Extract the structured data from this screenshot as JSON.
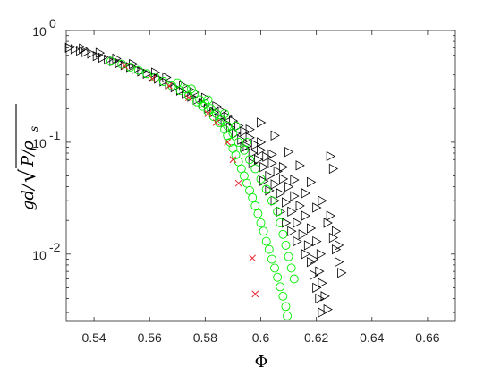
{
  "chart_data": {
    "type": "scatter",
    "title": "",
    "xlabel": "Φ",
    "ylabel": "gd/√(P/ρ_s)",
    "xscale": "linear",
    "yscale": "log",
    "xlim": [
      0.53,
      0.67
    ],
    "ylim": [
      0.0025,
      1.0
    ],
    "xticks": [
      0.54,
      0.56,
      0.58,
      0.6,
      0.62,
      0.64,
      0.66
    ],
    "xtick_labels": [
      "0.54",
      "0.56",
      "0.58",
      "0.6",
      "0.62",
      "0.64",
      "0.66"
    ],
    "yticks": [
      0.01,
      0.1,
      1.0
    ],
    "grid": false,
    "legend": "none",
    "series": [
      {
        "marker": "triangle-right",
        "color": "#000000",
        "points": [
          [
            0.531,
            0.7
          ],
          [
            0.533,
            0.68
          ],
          [
            0.535,
            0.66
          ],
          [
            0.537,
            0.64
          ],
          [
            0.539,
            0.62
          ],
          [
            0.541,
            0.59
          ],
          [
            0.543,
            0.57
          ],
          [
            0.545,
            0.55
          ],
          [
            0.547,
            0.53
          ],
          [
            0.549,
            0.51
          ],
          [
            0.551,
            0.49
          ],
          [
            0.553,
            0.47
          ],
          [
            0.555,
            0.45
          ],
          [
            0.557,
            0.43
          ],
          [
            0.559,
            0.41
          ],
          [
            0.561,
            0.39
          ],
          [
            0.563,
            0.37
          ],
          [
            0.565,
            0.35
          ],
          [
            0.567,
            0.33
          ],
          [
            0.569,
            0.31
          ],
          [
            0.571,
            0.29
          ],
          [
            0.573,
            0.27
          ],
          [
            0.575,
            0.255
          ],
          [
            0.577,
            0.24
          ],
          [
            0.579,
            0.22
          ],
          [
            0.581,
            0.2
          ],
          [
            0.583,
            0.185
          ],
          [
            0.585,
            0.165
          ],
          [
            0.587,
            0.15
          ],
          [
            0.589,
            0.135
          ],
          [
            0.591,
            0.12
          ],
          [
            0.593,
            0.105
          ],
          [
            0.595,
            0.092
          ],
          [
            0.597,
            0.08
          ],
          [
            0.599,
            0.07
          ],
          [
            0.601,
            0.06
          ],
          [
            0.603,
            0.05
          ],
          [
            0.605,
            0.042
          ],
          [
            0.607,
            0.035
          ],
          [
            0.609,
            0.029
          ],
          [
            0.611,
            0.024
          ],
          [
            0.613,
            0.019
          ],
          [
            0.615,
            0.015
          ],
          [
            0.617,
            0.012
          ],
          [
            0.619,
            0.009
          ],
          [
            0.621,
            0.007
          ],
          [
            0.622,
            0.0055
          ],
          [
            0.623,
            0.0042
          ],
          [
            0.624,
            0.0032
          ],
          [
            0.536,
            0.69
          ],
          [
            0.542,
            0.63
          ],
          [
            0.548,
            0.56
          ],
          [
            0.554,
            0.5
          ],
          [
            0.562,
            0.42
          ],
          [
            0.566,
            0.38
          ],
          [
            0.572,
            0.32
          ],
          [
            0.576,
            0.28
          ],
          [
            0.58,
            0.25
          ],
          [
            0.584,
            0.21
          ],
          [
            0.586,
            0.19
          ],
          [
            0.588,
            0.17
          ],
          [
            0.59,
            0.155
          ],
          [
            0.592,
            0.14
          ],
          [
            0.594,
            0.125
          ],
          [
            0.596,
            0.11
          ],
          [
            0.598,
            0.095
          ],
          [
            0.6,
            0.085
          ],
          [
            0.602,
            0.074
          ],
          [
            0.604,
            0.065
          ],
          [
            0.606,
            0.055
          ],
          [
            0.608,
            0.047
          ],
          [
            0.61,
            0.04
          ],
          [
            0.612,
            0.033
          ],
          [
            0.614,
            0.027
          ],
          [
            0.616,
            0.022
          ],
          [
            0.618,
            0.017
          ],
          [
            0.62,
            0.013
          ],
          [
            0.6215,
            0.01
          ],
          [
            0.594,
            0.09
          ],
          [
            0.597,
            0.065
          ],
          [
            0.601,
            0.045
          ],
          [
            0.603,
            0.037
          ],
          [
            0.605,
            0.03
          ],
          [
            0.607,
            0.024
          ],
          [
            0.609,
            0.019
          ],
          [
            0.611,
            0.016
          ],
          [
            0.613,
            0.013
          ],
          [
            0.616,
            0.01
          ],
          [
            0.618,
            0.0085
          ],
          [
            0.619,
            0.0065
          ],
          [
            0.62,
            0.005
          ],
          [
            0.621,
            0.004
          ],
          [
            0.622,
            0.003
          ],
          [
            0.596,
            0.13
          ],
          [
            0.6,
            0.1
          ],
          [
            0.604,
            0.078
          ],
          [
            0.608,
            0.06
          ],
          [
            0.612,
            0.046
          ],
          [
            0.616,
            0.035
          ],
          [
            0.62,
            0.026
          ],
          [
            0.624,
            0.019
          ],
          [
            0.626,
            0.014
          ],
          [
            0.627,
            0.011
          ],
          [
            0.628,
            0.0085
          ],
          [
            0.629,
            0.0068
          ],
          [
            0.625,
            0.075
          ],
          [
            0.626,
            0.058
          ],
          [
            0.6,
            0.15
          ],
          [
            0.605,
            0.115
          ],
          [
            0.61,
            0.082
          ],
          [
            0.614,
            0.062
          ],
          [
            0.618,
            0.044
          ],
          [
            0.622,
            0.03
          ],
          [
            0.625,
            0.022
          ],
          [
            0.627,
            0.016
          ],
          [
            0.628,
            0.012
          ]
        ]
      },
      {
        "marker": "circle",
        "color": "#00ee00",
        "points": [
          [
            0.546,
            0.53
          ],
          [
            0.55,
            0.5
          ],
          [
            0.553,
            0.47
          ],
          [
            0.556,
            0.44
          ],
          [
            0.559,
            0.41
          ],
          [
            0.562,
            0.38
          ],
          [
            0.565,
            0.35
          ],
          [
            0.568,
            0.32
          ],
          [
            0.571,
            0.29
          ],
          [
            0.574,
            0.26
          ],
          [
            0.577,
            0.23
          ],
          [
            0.579,
            0.21
          ],
          [
            0.581,
            0.19
          ],
          [
            0.583,
            0.17
          ],
          [
            0.585,
            0.15
          ],
          [
            0.587,
            0.13
          ],
          [
            0.588,
            0.115
          ],
          [
            0.589,
            0.1
          ],
          [
            0.59,
            0.088
          ],
          [
            0.591,
            0.077
          ],
          [
            0.592,
            0.067
          ],
          [
            0.593,
            0.058
          ],
          [
            0.594,
            0.05
          ],
          [
            0.595,
            0.043
          ],
          [
            0.596,
            0.037
          ],
          [
            0.597,
            0.032
          ],
          [
            0.598,
            0.027
          ],
          [
            0.599,
            0.023
          ],
          [
            0.6,
            0.019
          ],
          [
            0.601,
            0.016
          ],
          [
            0.602,
            0.013
          ],
          [
            0.603,
            0.011
          ],
          [
            0.604,
            0.009
          ],
          [
            0.605,
            0.0075
          ],
          [
            0.606,
            0.0062
          ],
          [
            0.607,
            0.0051
          ],
          [
            0.608,
            0.0042
          ],
          [
            0.609,
            0.0034
          ],
          [
            0.6095,
            0.0028
          ],
          [
            0.57,
            0.34
          ],
          [
            0.573,
            0.3
          ],
          [
            0.576,
            0.27
          ],
          [
            0.578,
            0.24
          ],
          [
            0.58,
            0.22
          ],
          [
            0.582,
            0.2
          ],
          [
            0.584,
            0.18
          ],
          [
            0.586,
            0.16
          ],
          [
            0.588,
            0.14
          ],
          [
            0.59,
            0.12
          ],
          [
            0.592,
            0.1
          ],
          [
            0.594,
            0.085
          ],
          [
            0.596,
            0.07
          ],
          [
            0.598,
            0.058
          ],
          [
            0.6,
            0.047
          ],
          [
            0.602,
            0.038
          ],
          [
            0.604,
            0.03
          ],
          [
            0.606,
            0.024
          ],
          [
            0.607,
            0.019
          ],
          [
            0.608,
            0.015
          ],
          [
            0.609,
            0.012
          ],
          [
            0.61,
            0.0095
          ],
          [
            0.611,
            0.0075
          ],
          [
            0.612,
            0.006
          ],
          [
            0.575,
            0.3
          ],
          [
            0.581,
            0.24
          ],
          [
            0.587,
            0.18
          ],
          [
            0.591,
            0.14
          ],
          [
            0.595,
            0.1
          ]
        ]
      },
      {
        "marker": "x",
        "color": "#e8202a",
        "points": [
          [
            0.551,
            0.48
          ],
          [
            0.561,
            0.37
          ],
          [
            0.567,
            0.32
          ],
          [
            0.574,
            0.25
          ],
          [
            0.581,
            0.18
          ],
          [
            0.584,
            0.15
          ],
          [
            0.588,
            0.1
          ],
          [
            0.59,
            0.07
          ],
          [
            0.592,
            0.043
          ],
          [
            0.597,
            0.0092
          ],
          [
            0.598,
            0.0044
          ]
        ]
      }
    ]
  }
}
